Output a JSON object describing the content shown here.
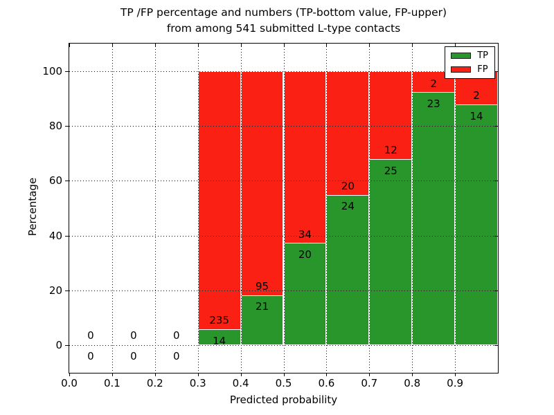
{
  "title": {
    "line1": "TP /FP percentage and numbers (TP-bottom value, FP-upper)",
    "line2": "from among 541 submitted L-type contacts"
  },
  "axes": {
    "xlabel": "Predicted probability",
    "ylabel": "Percentage",
    "yticks": [
      0,
      20,
      40,
      60,
      80,
      100
    ],
    "xticks": [
      "0.0",
      "0.1",
      "0.2",
      "0.3",
      "0.4",
      "0.5",
      "0.6",
      "0.7",
      "0.8",
      "0.9"
    ],
    "xlim": [
      0.0,
      1.0
    ],
    "ylim": [
      -10,
      110
    ]
  },
  "legend": {
    "items": [
      {
        "label": "TP",
        "color": "#28962b"
      },
      {
        "label": "FP",
        "color": "#fa2014"
      }
    ]
  },
  "chart_data": {
    "type": "bar",
    "stacked": true,
    "normalized_to_percent": true,
    "title": "TP /FP percentage and numbers (TP-bottom value, FP-upper) from among 541 submitted L-type contacts",
    "xlabel": "Predicted probability",
    "ylabel": "Percentage",
    "total_submitted": 541,
    "bin_width": 0.1,
    "bin_starts": [
      0.0,
      0.1,
      0.2,
      0.3,
      0.4,
      0.5,
      0.6,
      0.7,
      0.8,
      0.9
    ],
    "categories": [
      "0.0-0.1",
      "0.1-0.2",
      "0.2-0.3",
      "0.3-0.4",
      "0.4-0.5",
      "0.5-0.6",
      "0.6-0.7",
      "0.7-0.8",
      "0.8-0.9",
      "0.9-1.0"
    ],
    "series": [
      {
        "name": "TP",
        "color": "#28962b",
        "counts": [
          0,
          0,
          0,
          14,
          21,
          20,
          24,
          25,
          23,
          14
        ],
        "pct_heights": [
          0,
          0,
          0,
          5.62,
          18.1,
          37.04,
          54.55,
          67.57,
          92.0,
          87.5
        ]
      },
      {
        "name": "FP",
        "color": "#fa2014",
        "counts": [
          0,
          0,
          0,
          235,
          95,
          34,
          20,
          12,
          2,
          2
        ],
        "pct_heights": [
          0,
          0,
          0,
          94.38,
          81.9,
          62.96,
          45.45,
          32.43,
          8.0,
          12.5
        ]
      }
    ],
    "xlim": [
      0.0,
      1.0
    ],
    "ylim": [
      -10,
      110
    ],
    "grid": "dotted",
    "legend_position": "upper right"
  }
}
